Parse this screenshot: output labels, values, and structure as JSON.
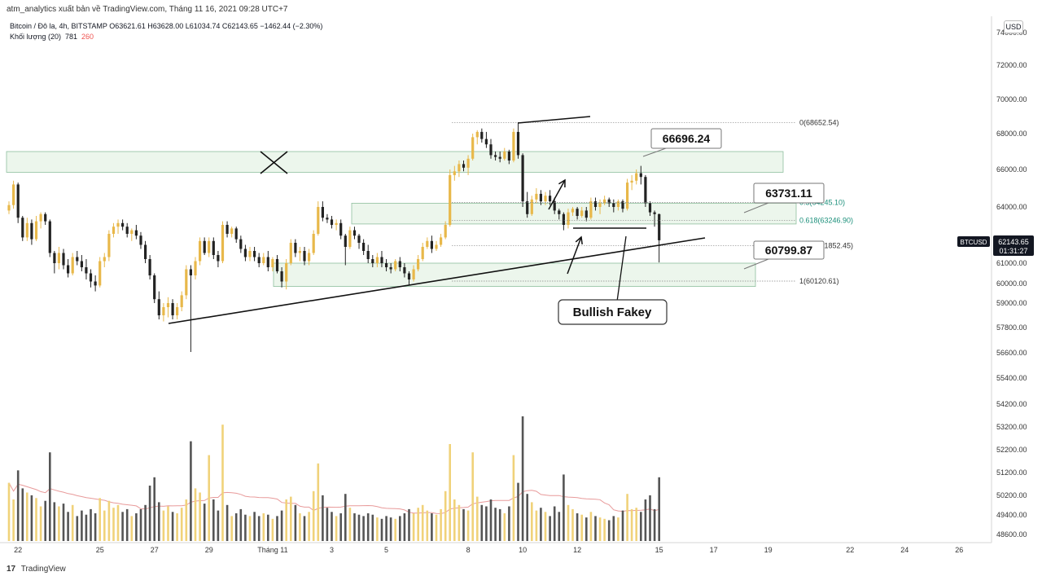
{
  "header": {
    "publish_line": "atm_analytics xuất bản về TradingView.com, Tháng 11 16, 2021 09:28 UTC+7",
    "symbol_line": "Bitcoin / Đô la, 4h, BITSTAMP  O63621.61  H63628.00  L61034.74  C62143.65  −1462.44 (−2.30%)",
    "volume_label": "Khối lượng (20)",
    "volume_value_1": "781",
    "volume_value_2": "260",
    "currency": "USD"
  },
  "footer": {
    "logo_mark": "17",
    "logo_text": "TradingView"
  },
  "chart_data": {
    "type": "candlestick",
    "price_axis": {
      "labels": [
        "74000.00",
        "72000.00",
        "70000.00",
        "68000.00",
        "66000.00",
        "64000.00",
        "62000.00",
        "61000.00",
        "60000.00",
        "59000.00",
        "57800.00",
        "56600.00",
        "55400.00",
        "54200.00",
        "53200.00",
        "52200.00",
        "51200.00",
        "50200.00",
        "49400.00",
        "48600.00"
      ],
      "ylim": [
        47800,
        74600
      ]
    },
    "x_axis": {
      "ticks": [
        {
          "label": "22",
          "i": 2
        },
        {
          "label": "25",
          "i": 20
        },
        {
          "label": "27",
          "i": 32
        },
        {
          "label": "29",
          "i": 44
        },
        {
          "label": "Tháng 11",
          "i": 58
        },
        {
          "label": "3",
          "i": 71
        },
        {
          "label": "5",
          "i": 83
        },
        {
          "label": "8",
          "i": 101
        },
        {
          "label": "10",
          "i": 113
        },
        {
          "label": "12",
          "i": 125
        },
        {
          "label": "15",
          "i": 143
        },
        {
          "label": "17",
          "i": 155
        },
        {
          "label": "19",
          "i": 167
        },
        {
          "label": "22",
          "i": 185
        },
        {
          "label": "24",
          "i": 197
        },
        {
          "label": "26",
          "i": 209
        }
      ]
    },
    "candles": [
      [
        63800,
        64300,
        63600,
        64100,
        420
      ],
      [
        64100,
        65400,
        63900,
        65200,
        300
      ],
      [
        65200,
        65300,
        63100,
        63400,
        510
      ],
      [
        63400,
        63500,
        62100,
        62300,
        380
      ],
      [
        62300,
        63400,
        62100,
        63100,
        350
      ],
      [
        63100,
        63300,
        61900,
        62200,
        330
      ],
      [
        62200,
        63500,
        62100,
        63200,
        310
      ],
      [
        63200,
        63700,
        62800,
        63600,
        250
      ],
      [
        63600,
        63700,
        63000,
        63200,
        290
      ],
      [
        63200,
        63300,
        61300,
        61500,
        640
      ],
      [
        61500,
        61600,
        60500,
        61000,
        280
      ],
      [
        61000,
        61800,
        60700,
        61500,
        250
      ],
      [
        61500,
        61700,
        60700,
        60900,
        270
      ],
      [
        60900,
        61200,
        60300,
        60500,
        210
      ],
      [
        60500,
        61500,
        60400,
        61300,
        260
      ],
      [
        61300,
        61600,
        60900,
        61100,
        180
      ],
      [
        61100,
        61400,
        60600,
        60800,
        220
      ],
      [
        60800,
        61200,
        60200,
        60500,
        190
      ],
      [
        60500,
        60700,
        59800,
        60100,
        230
      ],
      [
        60100,
        60400,
        59600,
        59900,
        200
      ],
      [
        59900,
        61300,
        59800,
        61100,
        310
      ],
      [
        61100,
        61500,
        60800,
        61300,
        220
      ],
      [
        61300,
        62700,
        61100,
        62500,
        290
      ],
      [
        62500,
        63100,
        62300,
        62900,
        240
      ],
      [
        62900,
        63300,
        62500,
        63100,
        260
      ],
      [
        63100,
        63300,
        62700,
        62900,
        210
      ],
      [
        62900,
        63100,
        62300,
        62500,
        230
      ],
      [
        62500,
        62800,
        62100,
        62700,
        180
      ],
      [
        62700,
        63000,
        62200,
        62400,
        200
      ],
      [
        62400,
        62600,
        61700,
        61900,
        230
      ],
      [
        61900,
        62100,
        61000,
        61200,
        260
      ],
      [
        61200,
        61400,
        60200,
        60400,
        400
      ],
      [
        60400,
        60500,
        59000,
        59200,
        460
      ],
      [
        59200,
        59600,
        58200,
        58400,
        280
      ],
      [
        58400,
        59000,
        58100,
        58800,
        220
      ],
      [
        58800,
        59300,
        58300,
        59000,
        250
      ],
      [
        59000,
        59200,
        58200,
        58400,
        210
      ],
      [
        58400,
        59000,
        58200,
        58800,
        200
      ],
      [
        58800,
        59600,
        58600,
        59400,
        240
      ],
      [
        59400,
        60900,
        59200,
        60700,
        300
      ],
      [
        60700,
        60900,
        56600,
        60400,
        720
      ],
      [
        60400,
        61300,
        60200,
        61100,
        380
      ],
      [
        61100,
        62300,
        60900,
        62100,
        350
      ],
      [
        62100,
        62300,
        61400,
        61500,
        270
      ],
      [
        61500,
        62300,
        61300,
        62100,
        620
      ],
      [
        62100,
        62300,
        61200,
        61400,
        300
      ],
      [
        61400,
        61600,
        60800,
        61100,
        220
      ],
      [
        61100,
        63200,
        61000,
        63000,
        840
      ],
      [
        63000,
        63200,
        62300,
        62500,
        260
      ],
      [
        62500,
        62900,
        62300,
        62800,
        180
      ],
      [
        62800,
        62900,
        62000,
        62200,
        200
      ],
      [
        62200,
        62400,
        61500,
        61700,
        230
      ],
      [
        61700,
        61900,
        61100,
        61300,
        190
      ],
      [
        61300,
        61800,
        61100,
        61600,
        180
      ],
      [
        61600,
        61800,
        61100,
        61300,
        210
      ],
      [
        61300,
        61500,
        60800,
        61000,
        180
      ],
      [
        61000,
        61500,
        60900,
        61300,
        200
      ],
      [
        61300,
        61600,
        60600,
        60800,
        190
      ],
      [
        60800,
        61300,
        60600,
        61200,
        160
      ],
      [
        61200,
        61400,
        60500,
        60600,
        180
      ],
      [
        60600,
        60800,
        59800,
        60100,
        220
      ],
      [
        60100,
        61200,
        59700,
        61000,
        300
      ],
      [
        61000,
        62200,
        60900,
        62000,
        320
      ],
      [
        62000,
        62200,
        61300,
        61500,
        260
      ],
      [
        61500,
        61800,
        61100,
        61600,
        200
      ],
      [
        61600,
        61800,
        60900,
        61100,
        180
      ],
      [
        61100,
        61700,
        60900,
        61500,
        210
      ],
      [
        61500,
        62700,
        61400,
        62500,
        360
      ],
      [
        62500,
        64300,
        62400,
        64000,
        560
      ],
      [
        64000,
        64300,
        63200,
        63400,
        330
      ],
      [
        63400,
        63600,
        63100,
        63300,
        240
      ],
      [
        63300,
        63500,
        62800,
        63000,
        210
      ],
      [
        63000,
        63300,
        62700,
        63100,
        180
      ],
      [
        63100,
        63300,
        62200,
        62400,
        200
      ],
      [
        62400,
        62500,
        60900,
        61800,
        340
      ],
      [
        61800,
        62900,
        61700,
        62700,
        240
      ],
      [
        62700,
        62900,
        62200,
        62400,
        200
      ],
      [
        62400,
        62500,
        61700,
        62000,
        190
      ],
      [
        62000,
        62200,
        61400,
        61600,
        180
      ],
      [
        61600,
        61900,
        61000,
        61200,
        200
      ],
      [
        61200,
        61400,
        60800,
        61000,
        190
      ],
      [
        61000,
        61500,
        60800,
        61300,
        170
      ],
      [
        61300,
        61600,
        60800,
        61000,
        160
      ],
      [
        61000,
        61200,
        60600,
        60800,
        180
      ],
      [
        60800,
        61000,
        60500,
        60700,
        170
      ],
      [
        60700,
        61200,
        60600,
        61100,
        160
      ],
      [
        61100,
        61300,
        60600,
        60800,
        180
      ],
      [
        60800,
        61000,
        60300,
        60500,
        200
      ],
      [
        60500,
        60600,
        59900,
        60200,
        230
      ],
      [
        60200,
        60900,
        60100,
        60700,
        200
      ],
      [
        60700,
        61400,
        60600,
        61200,
        240
      ],
      [
        61200,
        62000,
        61100,
        61800,
        260
      ],
      [
        61800,
        62300,
        61700,
        62100,
        220
      ],
      [
        62100,
        62400,
        61500,
        61700,
        200
      ],
      [
        61700,
        62100,
        61600,
        61900,
        190
      ],
      [
        61900,
        62500,
        61800,
        62300,
        230
      ],
      [
        62300,
        63200,
        62200,
        63000,
        360
      ],
      [
        63000,
        66000,
        62900,
        65700,
        700
      ],
      [
        65700,
        66200,
        65400,
        65900,
        300
      ],
      [
        65900,
        66500,
        65600,
        66300,
        260
      ],
      [
        66300,
        66500,
        65900,
        66100,
        230
      ],
      [
        66100,
        66800,
        65700,
        66600,
        220
      ],
      [
        66600,
        68000,
        66500,
        67800,
        640
      ],
      [
        67800,
        68200,
        67400,
        68100,
        320
      ],
      [
        68100,
        68300,
        67500,
        67700,
        260
      ],
      [
        67700,
        68100,
        67200,
        67400,
        250
      ],
      [
        67400,
        67700,
        66600,
        66800,
        300
      ],
      [
        66800,
        67000,
        66500,
        66700,
        240
      ],
      [
        66700,
        67000,
        66400,
        66600,
        230
      ],
      [
        66600,
        67200,
        66500,
        67000,
        200
      ],
      [
        67000,
        67100,
        66300,
        66500,
        250
      ],
      [
        66500,
        68300,
        66400,
        68100,
        620
      ],
      [
        68100,
        68652,
        66600,
        66800,
        420
      ],
      [
        66800,
        66900,
        64000,
        64300,
        900
      ],
      [
        64300,
        64800,
        63400,
        63600,
        340
      ],
      [
        63600,
        64600,
        63500,
        64400,
        280
      ],
      [
        64400,
        65000,
        64200,
        64700,
        220
      ],
      [
        64700,
        64900,
        64100,
        64300,
        240
      ],
      [
        64300,
        64800,
        64100,
        64600,
        210
      ],
      [
        64600,
        64900,
        64100,
        64300,
        180
      ],
      [
        64300,
        64500,
        63600,
        63800,
        250
      ],
      [
        63800,
        63900,
        63300,
        63600,
        210
      ],
      [
        63600,
        63700,
        62700,
        63000,
        480
      ],
      [
        63000,
        63900,
        62800,
        63700,
        260
      ],
      [
        63700,
        64000,
        63500,
        63900,
        230
      ],
      [
        63900,
        64000,
        63300,
        63500,
        200
      ],
      [
        63500,
        64000,
        63400,
        63800,
        190
      ],
      [
        63800,
        64000,
        63200,
        63400,
        170
      ],
      [
        63400,
        64500,
        63300,
        64300,
        210
      ],
      [
        64300,
        64500,
        63800,
        64000,
        180
      ],
      [
        64000,
        64400,
        63600,
        64200,
        170
      ],
      [
        64200,
        64600,
        64100,
        64400,
        160
      ],
      [
        64400,
        64500,
        64000,
        64200,
        150
      ],
      [
        64200,
        64400,
        63700,
        64000,
        180
      ],
      [
        64000,
        64400,
        63800,
        64300,
        170
      ],
      [
        64300,
        64400,
        63700,
        63900,
        220
      ],
      [
        63900,
        65500,
        63800,
        65300,
        340
      ],
      [
        65300,
        65700,
        64900,
        65400,
        230
      ],
      [
        65400,
        66000,
        65200,
        65800,
        240
      ],
      [
        65800,
        66200,
        65200,
        65600,
        210
      ],
      [
        65600,
        65700,
        64000,
        64200,
        300
      ],
      [
        64200,
        64300,
        63500,
        63700,
        330
      ],
      [
        63700,
        63800,
        62900,
        63600,
        230
      ],
      [
        63600,
        63628,
        61034,
        62143,
        460
      ]
    ]
  },
  "annotations": {
    "fib_labels": [
      "0(68652.54)",
      "0.5(64245.10)",
      "0.618(63246.90)",
      "0.786(61852.45)",
      "1(60120.61)"
    ],
    "callouts": [
      "66696.24",
      "63731.11",
      "60799.87"
    ],
    "fakey_label": "Bullish Fakey",
    "current_price": {
      "ticker": "BTCUSD",
      "price": "62143.65",
      "countdown": "01:31:27"
    }
  }
}
